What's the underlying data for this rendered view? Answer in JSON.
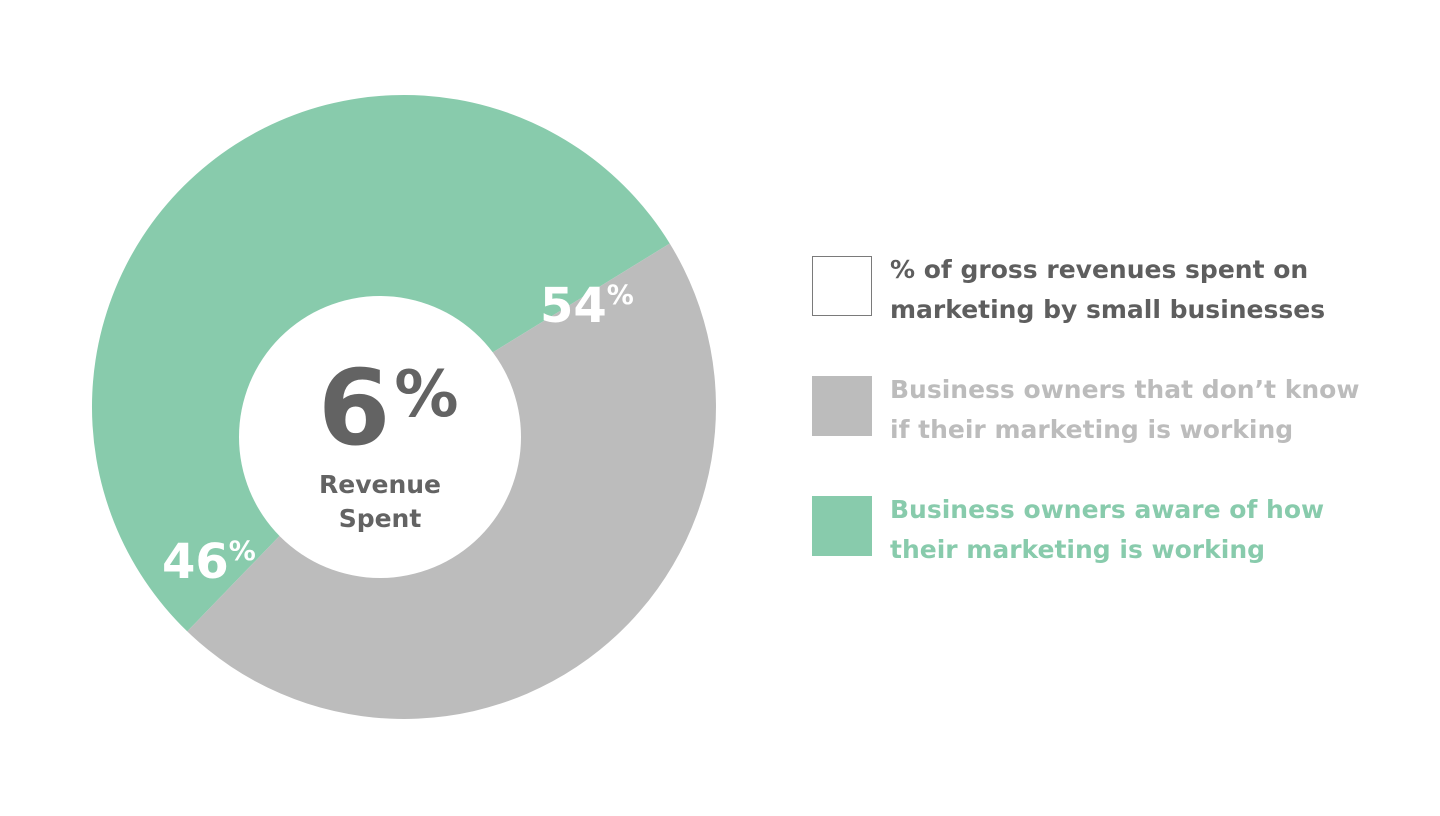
{
  "chart_data": {
    "type": "pie",
    "style": "donut",
    "center": {
      "value": "6",
      "unit": "%",
      "caption_lines": [
        "Revenue",
        "Spent"
      ],
      "color": "#636363"
    },
    "slices": [
      {
        "label_value": "54",
        "label_unit": "%",
        "value": 54,
        "color": "#88cbac",
        "legend_index": 2
      },
      {
        "label_value": "46",
        "label_unit": "%",
        "value": 46,
        "color": "#bcbcbc",
        "legend_index": 1
      }
    ],
    "legend": {
      "placement": "right",
      "items": [
        {
          "lines": [
            "% of gross revenues spent on",
            "marketing by small businesses"
          ],
          "swatch_fill": "#ffffff",
          "swatch_border": "#7a7a7a",
          "text_color": "#5e5e5e"
        },
        {
          "lines": [
            "Business owners that don’t know",
            "if their marketing is working"
          ],
          "swatch_fill": "#bcbcbc",
          "swatch_border": "#bcbcbc",
          "text_color": "#bcbcbc"
        },
        {
          "lines": [
            "Business owners aware of how",
            "their marketing is working"
          ],
          "swatch_fill": "#88cbac",
          "swatch_border": "#88cbac",
          "text_color": "#88cbac"
        }
      ]
    }
  }
}
